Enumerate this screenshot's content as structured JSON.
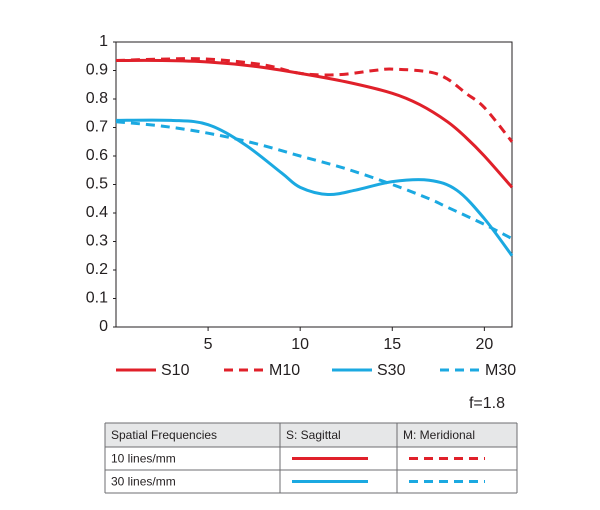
{
  "chart_data": {
    "type": "line",
    "xlim": [
      0,
      21.5
    ],
    "ylim": [
      0,
      1
    ],
    "xticks": [
      5,
      10,
      15,
      20
    ],
    "yticks": [
      0,
      0.1,
      0.2,
      0.3,
      0.4,
      0.5,
      0.6,
      0.7,
      0.8,
      0.9,
      1
    ],
    "annotation": "f=1.8",
    "series": [
      {
        "name": "S10",
        "color": "#e0202a",
        "style": "solid",
        "x": [
          0,
          2.5,
          5,
          7.5,
          10,
          12.5,
          15,
          16.5,
          18,
          19,
          20,
          21.5
        ],
        "values": [
          0.935,
          0.935,
          0.93,
          0.915,
          0.89,
          0.86,
          0.82,
          0.78,
          0.72,
          0.665,
          0.6,
          0.49
        ]
      },
      {
        "name": "M10",
        "color": "#e0202a",
        "style": "dashed",
        "x": [
          0,
          2.5,
          5,
          8,
          10,
          12,
          14,
          15,
          17,
          18,
          19,
          20,
          21.5
        ],
        "values": [
          0.935,
          0.94,
          0.94,
          0.92,
          0.89,
          0.885,
          0.9,
          0.905,
          0.895,
          0.87,
          0.82,
          0.77,
          0.65
        ]
      },
      {
        "name": "S30",
        "color": "#1ba9e1",
        "style": "solid",
        "x": [
          0,
          3,
          5,
          7,
          9,
          10,
          11.5,
          13,
          15,
          17,
          18.5,
          20,
          21.5
        ],
        "values": [
          0.725,
          0.725,
          0.71,
          0.64,
          0.54,
          0.49,
          0.465,
          0.48,
          0.51,
          0.515,
          0.48,
          0.38,
          0.25
        ]
      },
      {
        "name": "M30",
        "color": "#1ba9e1",
        "style": "dashed",
        "x": [
          0,
          2.5,
          5,
          7.5,
          10,
          12.5,
          15,
          17,
          18,
          20,
          21.5
        ],
        "values": [
          0.72,
          0.705,
          0.68,
          0.645,
          0.6,
          0.555,
          0.5,
          0.45,
          0.42,
          0.36,
          0.31
        ]
      }
    ]
  },
  "table": {
    "header": [
      "Spatial Frequencies",
      "S: Sagittal",
      "M: Meridional"
    ],
    "rows": [
      "10 lines/mm",
      "30 lines/mm"
    ]
  }
}
